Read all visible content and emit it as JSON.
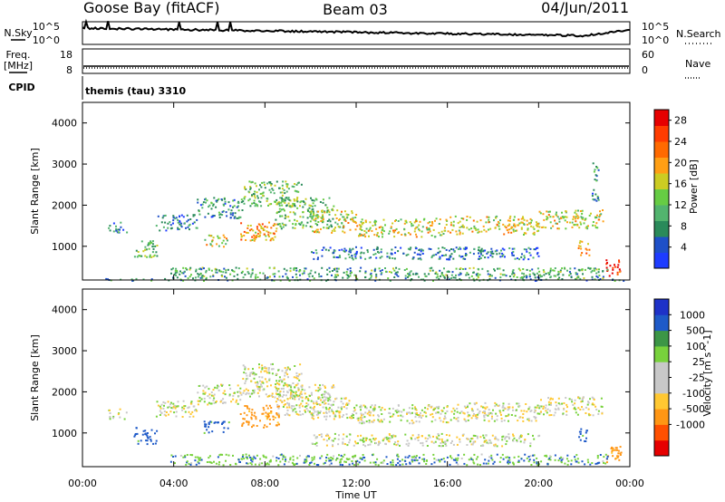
{
  "header": {
    "station": "Goose Bay (fitACF)",
    "beam": "Beam 03",
    "date": "04/Jun/2011"
  },
  "top_panels": {
    "nsky_label": "N.Sky",
    "nsky_ticks": [
      "10^5",
      "10^0"
    ],
    "nsearch_label": "N.Search",
    "nsearch_ticks": [
      "10^5",
      "10^0"
    ],
    "freq_label": "Freq.",
    "freq_unit": "[MHz]",
    "freq_ticks": [
      "18",
      "8"
    ],
    "nave_label": "Nave",
    "nave_ticks": [
      "60",
      "0"
    ],
    "cpid_label": "CPID",
    "cpid_value": "themis (tau) 3310"
  },
  "colors": {
    "power_scale": [
      "#1e3cff",
      "#1e50c8",
      "#2a8a5a",
      "#52b46e",
      "#66cc44",
      "#cccc22",
      "#ff9f14",
      "#ff6a00",
      "#ff3c00",
      "#e60000"
    ],
    "velocity_scale": [
      "#e60000",
      "#ff5000",
      "#ff9614",
      "#ffc832",
      "#c8c8c8",
      "#c8c8c8",
      "#78d23c",
      "#3c9646",
      "#1e5ac8",
      "#1e32c8"
    ]
  },
  "chart_data": [
    {
      "type": "heatmap",
      "name": "power",
      "title": "",
      "xlabel": "Time UT",
      "ylabel": "Slant Range [km]",
      "xlim": [
        "00:00",
        "24:00"
      ],
      "ylim": [
        180,
        4500
      ],
      "xticks": [
        "00:00",
        "04:00",
        "08:00",
        "12:00",
        "16:00",
        "20:00",
        "00:00"
      ],
      "yticks": [
        "1000",
        "2000",
        "3000",
        "4000"
      ],
      "colorbar_label": "Power [dB]",
      "colorbar_ticks": [
        "4",
        "8",
        "12",
        "16",
        "20",
        "24",
        "28"
      ],
      "colorbar_range": [
        0,
        30
      ],
      "regions": [
        {
          "t": [
            1.1,
            2.0
          ],
          "range": [
            1350,
            1600
          ],
          "value": 8
        },
        {
          "t": [
            2.2,
            3.3
          ],
          "range": [
            750,
            1150
          ],
          "value": 12
        },
        {
          "t": [
            3.2,
            5.0
          ],
          "range": [
            1400,
            1800
          ],
          "value": 6
        },
        {
          "t": [
            5.0,
            7.0
          ],
          "range": [
            1700,
            2200
          ],
          "value": 8
        },
        {
          "t": [
            5.3,
            6.4
          ],
          "range": [
            1000,
            1300
          ],
          "value": 16
        },
        {
          "t": [
            6.9,
            8.6
          ],
          "range": [
            1150,
            1600
          ],
          "value": 20
        },
        {
          "t": [
            7.0,
            9.6
          ],
          "range": [
            2000,
            2600
          ],
          "value": 12
        },
        {
          "t": [
            8.4,
            11.0
          ],
          "range": [
            1450,
            2200
          ],
          "value": 12
        },
        {
          "t": [
            10.0,
            12.0
          ],
          "range": [
            1350,
            1900
          ],
          "value": 16
        },
        {
          "t": [
            12.0,
            16.0
          ],
          "range": [
            1250,
            1700
          ],
          "value": 16
        },
        {
          "t": [
            16.0,
            20.0
          ],
          "range": [
            1300,
            1750
          ],
          "value": 16
        },
        {
          "t": [
            20.0,
            22.8
          ],
          "range": [
            1450,
            1900
          ],
          "value": 16
        },
        {
          "t": [
            21.7,
            22.2
          ],
          "range": [
            800,
            1150
          ],
          "value": 20
        },
        {
          "t": [
            22.3,
            22.6
          ],
          "range": [
            2100,
            3100
          ],
          "value": 8
        },
        {
          "t": [
            22.9,
            23.6
          ],
          "range": [
            300,
            700
          ],
          "value": 26
        },
        {
          "t": [
            3.8,
            23.0
          ],
          "range": [
            240,
            500
          ],
          "value": 10
        },
        {
          "t": [
            10.0,
            20.0
          ],
          "range": [
            700,
            1000
          ],
          "value": 6
        },
        {
          "t": [
            0.5,
            23.8
          ],
          "range": [
            180,
            230
          ],
          "value": 8
        }
      ]
    },
    {
      "type": "heatmap",
      "name": "velocity",
      "title": "",
      "xlabel": "Time UT",
      "ylabel": "Slant Range [km]",
      "xlim": [
        "00:00",
        "24:00"
      ],
      "ylim": [
        180,
        4500
      ],
      "xticks": [
        "00:00",
        "04:00",
        "08:00",
        "12:00",
        "16:00",
        "20:00",
        "00:00"
      ],
      "yticks": [
        "1000",
        "2000",
        "3000",
        "4000"
      ],
      "colorbar_label": "Velocity [m s^-1]",
      "colorbar_ticks": [
        "1000",
        "500",
        "100",
        "25",
        "-25",
        "-100",
        "-500",
        "-1000"
      ],
      "regions": [
        {
          "t": [
            1.1,
            2.0
          ],
          "range": [
            1350,
            1600
          ],
          "value": 0
        },
        {
          "t": [
            2.2,
            3.3
          ],
          "range": [
            750,
            1150
          ],
          "value": 150
        },
        {
          "t": [
            3.2,
            5.0
          ],
          "range": [
            1400,
            1800
          ],
          "value": 0
        },
        {
          "t": [
            5.0,
            7.0
          ],
          "range": [
            1700,
            2200
          ],
          "value": 0
        },
        {
          "t": [
            5.3,
            6.4
          ],
          "range": [
            1000,
            1300
          ],
          "value": 150
        },
        {
          "t": [
            6.9,
            8.6
          ],
          "range": [
            1150,
            1700
          ],
          "value": -150
        },
        {
          "t": [
            7.0,
            9.6
          ],
          "range": [
            1900,
            2700
          ],
          "value": 0
        },
        {
          "t": [
            8.4,
            11.0
          ],
          "range": [
            1450,
            2200
          ],
          "value": 0
        },
        {
          "t": [
            10.0,
            12.0
          ],
          "range": [
            1350,
            1900
          ],
          "value": 0
        },
        {
          "t": [
            12.0,
            16.0
          ],
          "range": [
            1250,
            1700
          ],
          "value": 0
        },
        {
          "t": [
            16.0,
            20.0
          ],
          "range": [
            1300,
            1750
          ],
          "value": 0
        },
        {
          "t": [
            20.0,
            22.8
          ],
          "range": [
            1450,
            1900
          ],
          "value": 0
        },
        {
          "t": [
            21.7,
            22.2
          ],
          "range": [
            800,
            1150
          ],
          "value": 150
        },
        {
          "t": [
            22.9,
            23.6
          ],
          "range": [
            300,
            700
          ],
          "value": -150
        },
        {
          "t": [
            3.8,
            23.0
          ],
          "range": [
            240,
            500
          ],
          "value": 80
        },
        {
          "t": [
            10.0,
            20.0
          ],
          "range": [
            700,
            1000
          ],
          "value": 0
        }
      ]
    }
  ]
}
